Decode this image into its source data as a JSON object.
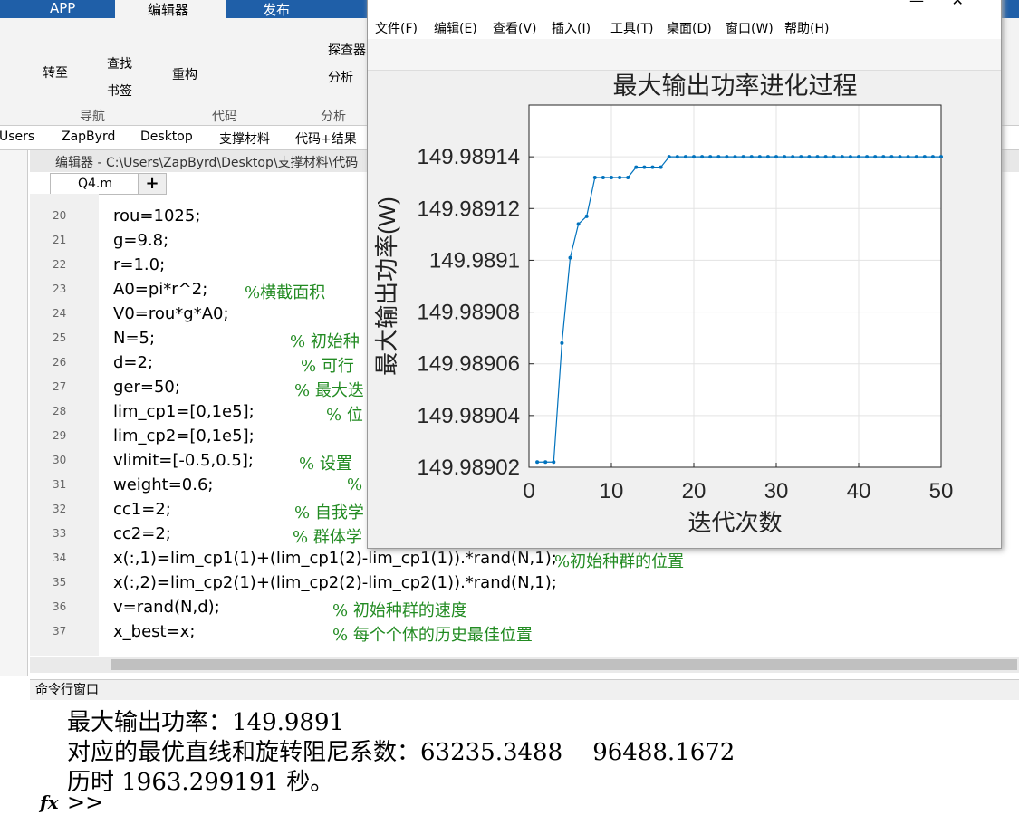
{
  "ribbon": {
    "tabs": [
      "APP",
      "编辑器",
      "发布"
    ],
    "buttons": {
      "goto": "转至",
      "find": "查找",
      "bookmark": "书签",
      "refactor": "重构",
      "profiler": "探查器",
      "analyze": "分析"
    },
    "groups": [
      "导航",
      "代码",
      "分析"
    ]
  },
  "breadcrumb": [
    "Users",
    "ZapByrd",
    "Desktop",
    "支撑材料",
    "代码+结果"
  ],
  "editor": {
    "title": "编辑器 - C:\\Users\\ZapByrd\\Desktop\\支撑材料\\代码",
    "tab": "Q4.m",
    "lines": [
      {
        "num": "20",
        "code": "rou=1025;",
        "comment": null
      },
      {
        "num": "21",
        "code": "g=9.8;",
        "comment": null
      },
      {
        "num": "22",
        "code": "r=1.0;",
        "comment": null
      },
      {
        "num": "23",
        "code": "A0=pi*r^2;",
        "comment": "%横截面积"
      },
      {
        "num": "24",
        "code": "V0=rou*g*A0;",
        "comment": null
      },
      {
        "num": "25",
        "code": "N=5;",
        "comment": "% 初始种"
      },
      {
        "num": "26",
        "code": "d=2;",
        "comment": "% 可行"
      },
      {
        "num": "27",
        "code": "ger=50;",
        "comment": "% 最大迭"
      },
      {
        "num": "28",
        "code": "lim_cp1=[0,1e5];",
        "comment": "% 位"
      },
      {
        "num": "29",
        "code": "lim_cp2=[0,1e5];",
        "comment": null
      },
      {
        "num": "30",
        "code": "vlimit=[-0.5,0.5];",
        "comment": "% 设置"
      },
      {
        "num": "31",
        "code": "weight=0.6;",
        "comment": "%"
      },
      {
        "num": "32",
        "code": "cc1=2;",
        "comment": "% 自我学"
      },
      {
        "num": "33",
        "code": "cc2=2;",
        "comment": "% 群体学"
      },
      {
        "num": "34",
        "code": "x(:,1)=lim_cp1(1)+(lim_cp1(2)-lim_cp1(1)).*rand(N,1);",
        "comment": "%初始种群的位置"
      },
      {
        "num": "35",
        "code": "x(:,2)=lim_cp2(1)+(lim_cp2(2)-lim_cp2(1)).*rand(N,1);",
        "comment": null
      },
      {
        "num": "36",
        "code": "v=rand(N,d);",
        "comment": "% 初始种群的速度"
      },
      {
        "num": "37",
        "code": "x_best=x;",
        "comment": "% 每个个体的历史最佳位置"
      }
    ]
  },
  "command_window": {
    "title": "命令行窗口",
    "lines": [
      "最大输出功率：149.9891",
      "对应的最优直线和旋转阻尼系数：63235.3488    96488.1672",
      "历时 1963.299191 秒。"
    ],
    "prompt": ">>"
  },
  "figure": {
    "menu": [
      "文件(F)",
      "编辑(E)",
      "查看(V)",
      "插入(I)",
      "工具(T)",
      "桌面(D)",
      "窗口(W)",
      "帮助(H)"
    ]
  },
  "chart_data": {
    "type": "line",
    "title": "最大输出功率进化过程",
    "x_label": "迭代次数",
    "y_label": "最大输出功率(W)",
    "x": [
      1,
      2,
      3,
      4,
      5,
      6,
      7,
      8,
      9,
      10,
      11,
      12,
      13,
      14,
      15,
      16,
      17,
      18,
      19,
      20,
      21,
      22,
      23,
      24,
      25,
      26,
      27,
      28,
      29,
      30,
      31,
      32,
      33,
      34,
      35,
      36,
      37,
      38,
      39,
      40,
      41,
      42,
      43,
      44,
      45,
      46,
      47,
      48,
      49,
      50
    ],
    "series": [
      {
        "color": "#0072bd",
        "values": [
          149.989022,
          149.989022,
          149.989022,
          149.989068,
          149.989101,
          149.989114,
          149.989117,
          149.989132,
          149.989132,
          149.989132,
          149.989132,
          149.989132,
          149.989136,
          149.989136,
          149.989136,
          149.989136,
          149.98914,
          149.98914,
          149.98914,
          149.98914,
          149.98914,
          149.98914,
          149.98914,
          149.98914,
          149.98914,
          149.98914,
          149.98914,
          149.98914,
          149.98914,
          149.98914,
          149.98914,
          149.98914,
          149.98914,
          149.98914,
          149.98914,
          149.98914,
          149.98914,
          149.98914,
          149.98914,
          149.98914,
          149.98914,
          149.98914,
          149.98914,
          149.98914,
          149.98914,
          149.98914,
          149.98914,
          149.98914,
          149.98914,
          149.98914
        ]
      }
    ],
    "xlim": [
      0,
      50
    ],
    "xticks": [
      0,
      10,
      20,
      30,
      40,
      50
    ],
    "ylim": [
      149.98902,
      149.98916
    ],
    "yticks": [
      149.98902,
      149.98904,
      149.98906,
      149.98908,
      149.9891,
      149.98912,
      149.98914
    ],
    "grid": true
  }
}
